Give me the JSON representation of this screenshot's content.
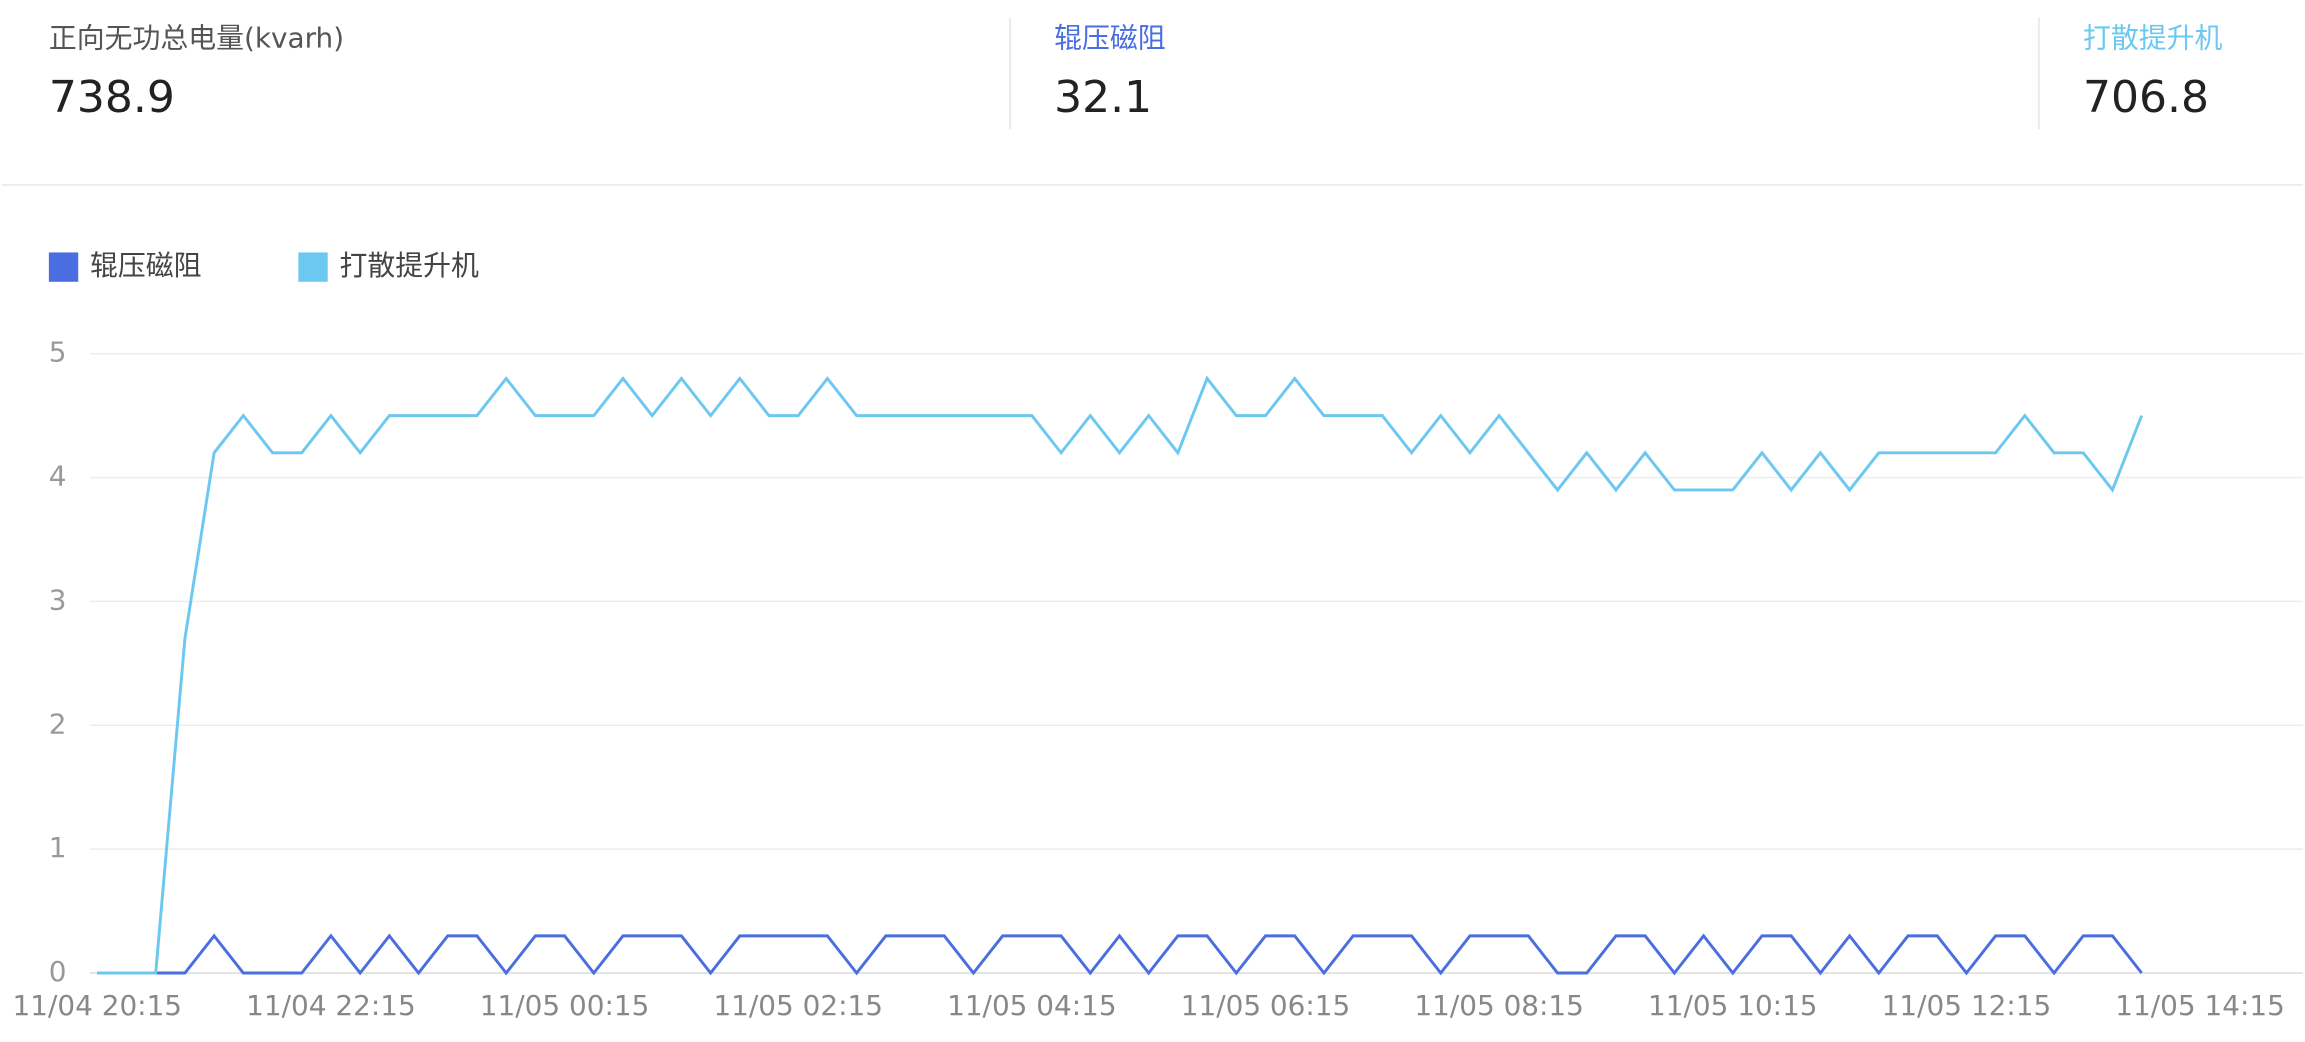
{
  "stats": [
    {
      "label": "正向无功总电量(kvarh)",
      "value": "738.9"
    },
    {
      "label": "辊压磁阻",
      "value": "32.1"
    },
    {
      "label": "打散提升机",
      "value": "706.8"
    }
  ],
  "chart_data": {
    "type": "line",
    "categories": [
      "11/04 20:15",
      null,
      null,
      null,
      null,
      null,
      null,
      null,
      "11/04 22:15",
      null,
      null,
      null,
      null,
      null,
      null,
      null,
      "11/05 00:15",
      null,
      null,
      null,
      null,
      null,
      null,
      null,
      "11/05 02:15",
      null,
      null,
      null,
      null,
      null,
      null,
      null,
      "11/05 04:15",
      null,
      null,
      null,
      null,
      null,
      null,
      null,
      "11/05 06:15",
      null,
      null,
      null,
      null,
      null,
      null,
      null,
      "11/05 08:15",
      null,
      null,
      null,
      null,
      null,
      null,
      null,
      "11/05 10:15",
      null,
      null,
      null,
      null,
      null,
      null,
      null,
      "11/05 12:15",
      null,
      null,
      null,
      null,
      null,
      null,
      null,
      "11/05 14:15"
    ],
    "series": [
      {
        "name": "辊压磁阻",
        "color": "#4a6ee0",
        "values": [
          0,
          0,
          0,
          0,
          0.3,
          0,
          0,
          0,
          0.3,
          0,
          0.3,
          0,
          0.3,
          0.3,
          0,
          0.3,
          0.3,
          0,
          0.3,
          0.3,
          0.3,
          0,
          0.3,
          0.3,
          0.3,
          0.3,
          0,
          0.3,
          0.3,
          0.3,
          0,
          0.3,
          0.3,
          0.3,
          0,
          0.3,
          0,
          0.3,
          0.3,
          0,
          0.3,
          0.3,
          0,
          0.3,
          0.3,
          0.3,
          0,
          0.3,
          0.3,
          0.3,
          0,
          0,
          0.3,
          0.3,
          0,
          0.3,
          0,
          0.3,
          0.3,
          0,
          0.3,
          0,
          0.3,
          0.3,
          0,
          0.3,
          0.3,
          0,
          0.3,
          0.3,
          0,
          null,
          null
        ]
      },
      {
        "name": "打散提升机",
        "color": "#6cc8f0",
        "values": [
          0,
          0,
          0,
          2.7,
          4.2,
          4.5,
          4.2,
          4.2,
          4.5,
          4.2,
          4.5,
          4.5,
          4.5,
          4.5,
          4.8,
          4.5,
          4.5,
          4.5,
          4.8,
          4.5,
          4.8,
          4.5,
          4.8,
          4.5,
          4.5,
          4.8,
          4.5,
          4.5,
          4.5,
          4.5,
          4.5,
          4.5,
          4.5,
          4.2,
          4.5,
          4.2,
          4.5,
          4.2,
          4.8,
          4.5,
          4.5,
          4.8,
          4.5,
          4.5,
          4.5,
          4.2,
          4.5,
          4.2,
          4.5,
          4.2,
          3.9,
          4.2,
          3.9,
          4.2,
          3.9,
          3.9,
          3.9,
          4.2,
          3.9,
          4.2,
          3.9,
          4.2,
          4.2,
          4.2,
          4.2,
          4.2,
          4.5,
          4.2,
          4.2,
          3.9,
          4.5,
          null,
          null
        ]
      }
    ],
    "ylim": [
      0,
      5
    ],
    "yticks": [
      0,
      1,
      2,
      3,
      4,
      5
    ],
    "grid": true,
    "legend": "top-left"
  }
}
